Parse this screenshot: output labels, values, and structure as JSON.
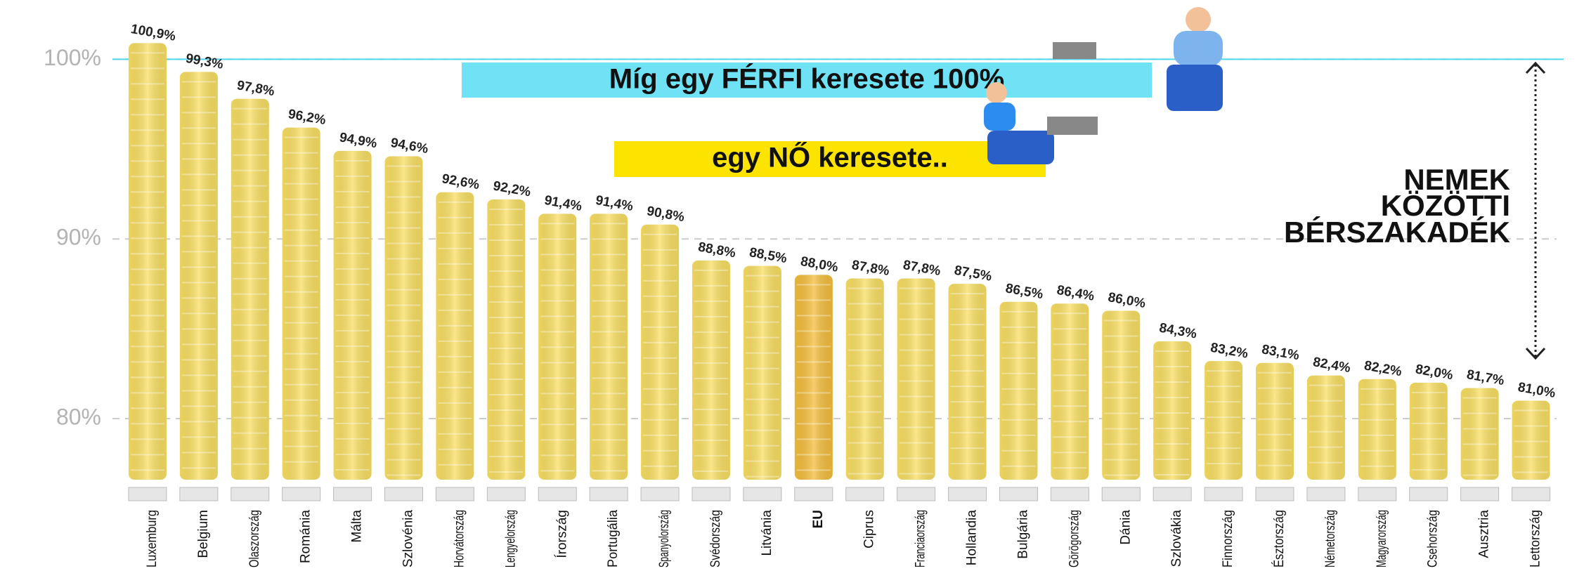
{
  "chart_data": {
    "type": "bar",
    "categories": [
      "Luxemburg",
      "Belgium",
      "Olaszország",
      "Románia",
      "Málta",
      "Szlovénia",
      "Horvátország",
      "Lengyelország",
      "Írország",
      "Portugália",
      "Spanyolország",
      "Svédország",
      "Litvánia",
      "EU",
      "Ciprus",
      "Franciaország",
      "Hollandia",
      "Bulgária",
      "Görögország",
      "Dánia",
      "Szlovákia",
      "Finnország",
      "Észtország",
      "Németország",
      "Magyarország",
      "Csehország",
      "Ausztria",
      "Lettország"
    ],
    "values": [
      100.9,
      99.3,
      97.8,
      96.2,
      94.9,
      94.6,
      92.6,
      92.2,
      91.4,
      91.4,
      90.8,
      88.8,
      88.5,
      88.0,
      87.8,
      87.8,
      87.5,
      86.5,
      86.4,
      86.0,
      84.3,
      83.2,
      83.1,
      82.4,
      82.2,
      82.0,
      81.7,
      81.0
    ],
    "value_labels": [
      "100,9%",
      "99,3%",
      "97,8%",
      "96,2%",
      "94,9%",
      "94,6%",
      "92,6%",
      "92,2%",
      "91,4%",
      "91,4%",
      "90,8%",
      "88,8%",
      "88,5%",
      "88,0%",
      "87,8%",
      "87,8%",
      "87,5%",
      "86,5%",
      "86,4%",
      "86,0%",
      "84,3%",
      "83,2%",
      "83,1%",
      "82,4%",
      "82,2%",
      "82,0%",
      "81,7%",
      "81,0%"
    ],
    "color": "#f9df62",
    "highlight_index": 13,
    "highlight_color": "#f5be3c",
    "highlight_label_color": "#2a5db0",
    "ylim": [
      76.6,
      103.3
    ],
    "yticks": [
      {
        "value": 80,
        "label": "80%"
      },
      {
        "value": 90,
        "label": "90%"
      },
      {
        "value": 100,
        "label": "100%"
      }
    ],
    "grid": true,
    "reference_line": {
      "value": 100,
      "color": "#4fd6ee"
    },
    "annotations": {
      "men": "Míg egy FÉRFI keresete 100%",
      "women": "egy NŐ keresete..",
      "gap": [
        "NEMEK",
        "KÖZÖTTI",
        "BÉRSZAKADÉK"
      ]
    }
  }
}
